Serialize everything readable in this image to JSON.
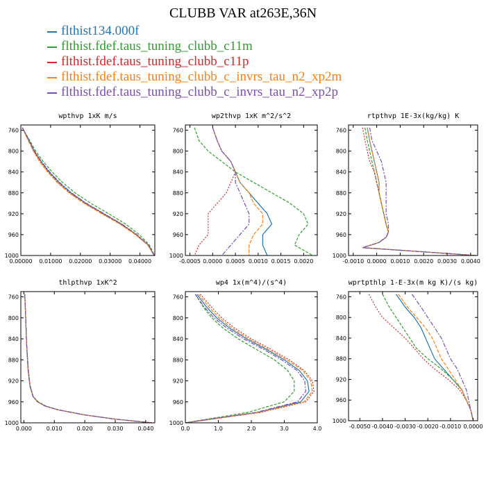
{
  "title": "CLUBB VAR at263E,36N",
  "colors": {
    "series": [
      "#1f77b4",
      "#2ca02c",
      "#d62728",
      "#ff7f0e",
      "#7b4fb0"
    ]
  },
  "legend": [
    "flthist134.000f",
    "flthist.fdef.taus_tuning_clubb_c11m",
    "flthist.fdef.taus_tuning_clubb_c11p",
    "flthist.fdef.taus_tuning_clubb_c_invrs_tau_n2_xp2m",
    "flthist.fdef.taus_tuning_clubb_c_invrs_tau_n2_xp2p"
  ],
  "chart_data": [
    {
      "type": "line",
      "title": "wpthvp  1xK m/s",
      "xlim": [
        0,
        0.045
      ],
      "ylim": [
        1000,
        750
      ],
      "xticks": [
        0,
        0.01,
        0.02,
        0.03,
        0.04
      ],
      "xtick_labels": [
        "0.00000",
        "0.01000",
        "0.02000",
        "0.03000",
        "0.04000"
      ],
      "yticks": [
        760,
        800,
        840,
        880,
        920,
        960,
        1000
      ],
      "y": [
        755,
        780,
        800,
        820,
        840,
        860,
        880,
        900,
        920,
        940,
        960,
        980,
        1000
      ],
      "series": [
        {
          "name": "flthist134.000f",
          "values": [
            0.0005,
            0.0028,
            0.0045,
            0.0068,
            0.0095,
            0.0128,
            0.0168,
            0.0218,
            0.0278,
            0.0338,
            0.0388,
            0.0428,
            0.0448
          ]
        },
        {
          "name": "flthist.fdef.taus_tuning_clubb_c11m",
          "values": [
            0.0005,
            0.003,
            0.005,
            0.0075,
            0.0105,
            0.014,
            0.0182,
            0.0235,
            0.0295,
            0.0352,
            0.0398,
            0.0432,
            0.0449
          ]
        },
        {
          "name": "flthist.fdef.taus_tuning_clubb_c11p",
          "values": [
            0.0005,
            0.0026,
            0.0043,
            0.0065,
            0.0092,
            0.0124,
            0.0164,
            0.0214,
            0.0274,
            0.0335,
            0.0386,
            0.0427,
            0.0448
          ]
        },
        {
          "name": "flthist.fdef.taus_tuning_clubb_c_invrs_tau_n2_xp2m",
          "values": [
            0.0005,
            0.0025,
            0.0042,
            0.0063,
            0.009,
            0.0122,
            0.0162,
            0.0212,
            0.0272,
            0.0333,
            0.0385,
            0.0426,
            0.0448
          ]
        },
        {
          "name": "flthist.fdef.taus_tuning_clubb_c_invrs_tau_n2_xp2p",
          "values": [
            0.0005,
            0.0028,
            0.0046,
            0.0069,
            0.0097,
            0.013,
            0.017,
            0.022,
            0.028,
            0.034,
            0.039,
            0.0429,
            0.0448
          ]
        }
      ]
    },
    {
      "type": "line",
      "title": "wp2thvp  1xK m^2/s^2",
      "xlim": [
        -0.0006,
        0.0023
      ],
      "ylim": [
        1000,
        750
      ],
      "xticks": [
        -0.0005,
        0,
        0.0005,
        0.001,
        0.0015,
        0.002
      ],
      "xtick_labels": [
        "-0.0005",
        "0.0000",
        "0.0005",
        "0.0010",
        "0.0015",
        "0.0020"
      ],
      "yticks": [
        760,
        800,
        840,
        880,
        920,
        960,
        1000
      ],
      "y": [
        755,
        780,
        800,
        820,
        840,
        860,
        880,
        900,
        920,
        940,
        960,
        980,
        1000
      ],
      "series": [
        {
          "name": "flthist134.000f",
          "values": [
            0.0,
            0.0001,
            0.0002,
            0.0004,
            0.0005,
            0.0006,
            0.0008,
            0.001,
            0.0012,
            0.0013,
            0.0011,
            0.0011,
            0.0012
          ]
        },
        {
          "name": "flthist.fdef.taus_tuning_clubb_c11m",
          "values": [
            -0.0004,
            -0.0003,
            -0.0001,
            0.0002,
            0.0005,
            0.0009,
            0.0013,
            0.0017,
            0.002,
            0.0021,
            0.0019,
            0.0018,
            0.0022
          ]
        },
        {
          "name": "flthist.fdef.taus_tuning_clubb_c11p",
          "values": [
            0.0,
            0.0001,
            0.0002,
            0.0004,
            0.0005,
            0.0004,
            0.0003,
            0.0001,
            -0.0001,
            -0.0001,
            -0.0001,
            -0.0003,
            -0.0004
          ]
        },
        {
          "name": "flthist.fdef.taus_tuning_clubb_c_invrs_tau_n2_xp2m",
          "values": [
            0.0,
            0.0001,
            0.0002,
            0.0004,
            0.0005,
            0.0006,
            0.0008,
            0.0009,
            0.0011,
            0.0011,
            0.0009,
            0.0008,
            0.0008
          ]
        },
        {
          "name": "flthist.fdef.taus_tuning_clubb_c_invrs_tau_n2_xp2p",
          "values": [
            0.0,
            0.0001,
            0.0002,
            0.0004,
            0.0005,
            0.0005,
            0.0006,
            0.0007,
            0.0008,
            0.0008,
            0.0006,
            0.0004,
            0.0002
          ]
        }
      ]
    },
    {
      "type": "line",
      "title": "rtpthvp  1E-3x(kg/kg) K",
      "xlim": [
        -0.0012,
        0.0043
      ],
      "ylim": [
        1000,
        750
      ],
      "xticks": [
        -0.001,
        0,
        0.001,
        0.002,
        0.003,
        0.004
      ],
      "xtick_labels": [
        "-0.0010",
        "0.0000",
        "0.0010",
        "0.0020",
        "0.0030",
        "0.0040"
      ],
      "yticks": [
        760,
        800,
        840,
        880,
        920,
        960,
        1000
      ],
      "y": [
        755,
        780,
        800,
        820,
        840,
        860,
        880,
        900,
        920,
        940,
        955,
        965,
        975,
        985,
        993,
        1000
      ],
      "series": [
        {
          "name": "flthist134.000f",
          "values": [
            -0.0004,
            -0.0003,
            -0.0002,
            -0.0001,
            0.0,
            0.0001,
            0.0001,
            0.0002,
            0.0003,
            0.0004,
            0.0005,
            0.0004,
            0.0001,
            -0.0006,
            0.002,
            0.0042
          ]
        },
        {
          "name": "flthist.fdef.taus_tuning_clubb_c11m",
          "values": [
            -0.0005,
            -0.0004,
            -0.0003,
            -0.0002,
            -0.0001,
            0.0,
            0.0001,
            0.0002,
            0.0003,
            0.0004,
            0.0005,
            0.0004,
            0.0001,
            -0.0006,
            0.002,
            0.0042
          ]
        },
        {
          "name": "flthist.fdef.taus_tuning_clubb_c11p",
          "values": [
            -0.0006,
            -0.0005,
            -0.0004,
            -0.0003,
            -0.0001,
            0.0,
            0.0001,
            0.0002,
            0.0003,
            0.0004,
            0.0005,
            0.0004,
            0.0001,
            -0.0006,
            0.002,
            0.0042
          ]
        },
        {
          "name": "flthist.fdef.taus_tuning_clubb_c_invrs_tau_n2_xp2m",
          "values": [
            -0.0004,
            -0.0003,
            -0.0002,
            -0.0001,
            0.0,
            0.0001,
            0.0001,
            0.0002,
            0.0003,
            0.0004,
            0.0005,
            0.0004,
            0.0001,
            -0.0006,
            0.002,
            0.0042
          ]
        },
        {
          "name": "flthist.fdef.taus_tuning_clubb_c_invrs_tau_n2_xp2p",
          "values": [
            -0.0003,
            -0.0002,
            0.0,
            0.0002,
            0.0003,
            0.0004,
            0.0004,
            0.0004,
            0.0004,
            0.0005,
            0.0005,
            0.0004,
            0.0001,
            -0.0006,
            0.002,
            0.0042
          ]
        }
      ]
    },
    {
      "type": "line",
      "title": "thlpthvp  1xK^2",
      "xlim": [
        -0.001,
        0.043
      ],
      "ylim": [
        1000,
        750
      ],
      "xticks": [
        0,
        0.01,
        0.02,
        0.03,
        0.04
      ],
      "xtick_labels": [
        "0.000",
        "0.010",
        "0.020",
        "0.030",
        "0.040"
      ],
      "yticks": [
        760,
        800,
        840,
        880,
        920,
        960,
        1000
      ],
      "y": [
        755,
        800,
        850,
        900,
        930,
        950,
        960,
        968,
        975,
        985,
        993,
        1000
      ],
      "series": [
        {
          "name": "flthist134.000f",
          "values": [
            0.0003,
            0.0006,
            0.0009,
            0.0014,
            0.002,
            0.003,
            0.0045,
            0.007,
            0.011,
            0.02,
            0.03,
            0.042
          ]
        },
        {
          "name": "flthist.fdef.taus_tuning_clubb_c11m",
          "values": [
            0.0003,
            0.0006,
            0.0009,
            0.0015,
            0.0021,
            0.0031,
            0.0047,
            0.0072,
            0.0112,
            0.0202,
            0.0302,
            0.042
          ]
        },
        {
          "name": "flthist.fdef.taus_tuning_clubb_c11p",
          "values": [
            0.0003,
            0.0006,
            0.0009,
            0.0014,
            0.002,
            0.003,
            0.0045,
            0.007,
            0.011,
            0.02,
            0.03,
            0.042
          ]
        },
        {
          "name": "flthist.fdef.taus_tuning_clubb_c_invrs_tau_n2_xp2m",
          "values": [
            0.0003,
            0.0006,
            0.0009,
            0.0014,
            0.002,
            0.003,
            0.0044,
            0.0069,
            0.0109,
            0.0199,
            0.0299,
            0.042
          ]
        },
        {
          "name": "flthist.fdef.taus_tuning_clubb_c_invrs_tau_n2_xp2p",
          "values": [
            0.0003,
            0.0006,
            0.0009,
            0.0014,
            0.002,
            0.003,
            0.0045,
            0.007,
            0.011,
            0.02,
            0.03,
            0.042
          ]
        }
      ]
    },
    {
      "type": "line",
      "title": "wp4  1x(m^4)/(s^4)",
      "xlim": [
        0,
        4.0
      ],
      "ylim": [
        1000,
        750
      ],
      "xticks": [
        0,
        1,
        2,
        3,
        4
      ],
      "xtick_labels": [
        "0.0",
        "1.0",
        "2.0",
        "3.0",
        "4.0"
      ],
      "yticks": [
        760,
        800,
        840,
        880,
        920,
        960,
        1000
      ],
      "y": [
        755,
        780,
        800,
        820,
        840,
        860,
        880,
        900,
        920,
        940,
        960,
        980,
        1000
      ],
      "series": [
        {
          "name": "flthist134.000f",
          "values": [
            0.35,
            0.65,
            0.95,
            1.35,
            1.85,
            2.45,
            3.0,
            3.45,
            3.7,
            3.75,
            3.5,
            2.2,
            0.0
          ]
        },
        {
          "name": "flthist.fdef.taus_tuning_clubb_c11m",
          "values": [
            0.3,
            0.55,
            0.8,
            1.15,
            1.6,
            2.15,
            2.7,
            3.1,
            3.3,
            3.3,
            3.0,
            1.9,
            0.0
          ]
        },
        {
          "name": "flthist.fdef.taus_tuning_clubb_c11p",
          "values": [
            0.45,
            0.8,
            1.1,
            1.5,
            2.0,
            2.6,
            3.15,
            3.6,
            3.85,
            3.9,
            3.65,
            2.3,
            0.0
          ]
        },
        {
          "name": "flthist.fdef.taus_tuning_clubb_c_invrs_tau_n2_xp2m",
          "values": [
            0.4,
            0.72,
            1.02,
            1.42,
            1.92,
            2.52,
            3.08,
            3.55,
            3.8,
            3.85,
            3.6,
            2.25,
            0.0
          ]
        },
        {
          "name": "flthist.fdef.taus_tuning_clubb_c_invrs_tau_n2_xp2p",
          "values": [
            0.3,
            0.58,
            0.87,
            1.27,
            1.77,
            2.37,
            2.92,
            3.38,
            3.62,
            3.65,
            3.4,
            2.15,
            0.0
          ]
        }
      ]
    },
    {
      "type": "line",
      "title": "wprtpthlp  1-E-3x(m kg K)/(s kg)",
      "xlim": [
        -0.0055,
        0.0002
      ],
      "ylim": [
        1000,
        750
      ],
      "xticks": [
        -0.005,
        -0.004,
        -0.003,
        -0.002,
        -0.001,
        0
      ],
      "xtick_labels": [
        "-0.0050",
        "-0.0040",
        "-0.0030",
        "-0.0020",
        "-0.0010",
        "0.0000"
      ],
      "yticks": [
        760,
        800,
        840,
        880,
        920,
        960,
        1000
      ],
      "y": [
        755,
        780,
        800,
        820,
        840,
        860,
        880,
        900,
        920,
        940,
        960,
        980,
        1000
      ],
      "series": [
        {
          "name": "flthist134.000f",
          "values": [
            -0.0034,
            -0.003,
            -0.0026,
            -0.0023,
            -0.0021,
            -0.0019,
            -0.0017,
            -0.0013,
            -0.0009,
            -0.0005,
            -0.0003,
            -0.0001,
            0.0
          ]
        },
        {
          "name": "flthist.fdef.taus_tuning_clubb_c11m",
          "values": [
            -0.004,
            -0.0037,
            -0.0034,
            -0.0031,
            -0.0028,
            -0.0025,
            -0.002,
            -0.0014,
            -0.0009,
            -0.0005,
            -0.0003,
            -0.0001,
            0.0
          ]
        },
        {
          "name": "flthist.fdef.taus_tuning_clubb_c11p",
          "values": [
            -0.0046,
            -0.0043,
            -0.004,
            -0.0035,
            -0.003,
            -0.0026,
            -0.0022,
            -0.0017,
            -0.0011,
            -0.0006,
            -0.0003,
            -0.0001,
            0.0
          ]
        },
        {
          "name": "flthist.fdef.taus_tuning_clubb_c_invrs_tau_n2_xp2m",
          "values": [
            -0.0033,
            -0.0029,
            -0.0025,
            -0.0021,
            -0.0018,
            -0.0016,
            -0.0014,
            -0.0011,
            -0.0008,
            -0.0005,
            -0.0003,
            -0.0001,
            0.0
          ]
        },
        {
          "name": "flthist.fdef.taus_tuning_clubb_c_invrs_tau_n2_xp2p",
          "values": [
            -0.0027,
            -0.0023,
            -0.002,
            -0.0017,
            -0.0014,
            -0.0012,
            -0.001,
            -0.0007,
            -0.0005,
            -0.0003,
            -0.0002,
            -0.0001,
            0.0
          ]
        }
      ]
    }
  ]
}
